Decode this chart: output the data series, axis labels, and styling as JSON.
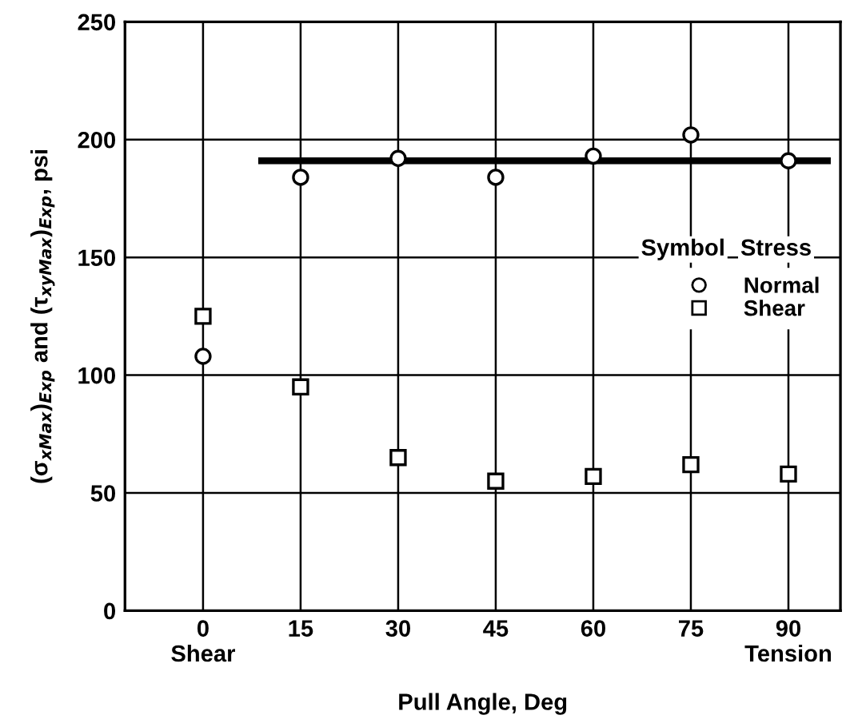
{
  "chart_data": {
    "type": "scatter",
    "xlabel": "Pull Angle, Deg",
    "ylabel": "(σ$_{xMax}$)$_{Exp}$ and (τ$_{xyMax}$)$_{Exp}$, psi",
    "x": [
      0,
      15,
      30,
      45,
      60,
      75,
      90
    ],
    "series": [
      {
        "name": "Normal",
        "color": "#000000",
        "marker": "circle",
        "values": [
          108,
          184,
          192,
          184,
          193,
          202,
          191
        ]
      },
      {
        "name": "Shear",
        "color": "#000000",
        "marker": "square",
        "values": [
          125,
          95,
          65,
          55,
          57,
          62,
          58
        ]
      },
      {
        "type": "line",
        "color": "#000000",
        "marker": "none",
        "x": [
          9,
          96
        ],
        "values": [
          191,
          191
        ]
      }
    ],
    "annotations": [
      "Symbol",
      "Stress"
    ],
    "xlim": [
      -12,
      98
    ],
    "ylim": [
      0,
      250
    ],
    "xticks": [
      {
        "value": 0,
        "label": "0\nShear"
      },
      15,
      30,
      45,
      60,
      75,
      {
        "value": 90,
        "label": "90\nTension"
      }
    ],
    "yticks": [
      0,
      50,
      100,
      150,
      200,
      250
    ],
    "grid": true,
    "legend": "right"
  }
}
